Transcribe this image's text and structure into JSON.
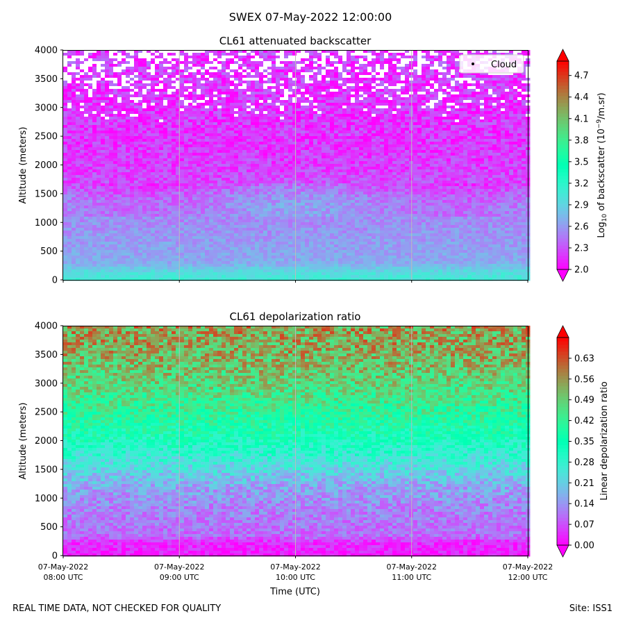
{
  "suptitle": "SWEX 07-May-2022 12:00:00",
  "footer": {
    "left": "REAL TIME DATA, NOT CHECKED FOR QUALITY",
    "right": "Site: ISS1"
  },
  "chart_data": [
    {
      "type": "heatmap",
      "title": "CL61 attenuated backscatter",
      "ylabel": "Altitude (meters)",
      "ylim": [
        0,
        4000
      ],
      "yticks": [
        0,
        500,
        1000,
        1500,
        2000,
        2500,
        3000,
        3500,
        4000
      ],
      "xlim": [
        "2022-05-07 08:00",
        "2022-05-07 12:00"
      ],
      "xticks": [
        "2022-05-07 08:00",
        "2022-05-07 09:00",
        "2022-05-07 10:00",
        "2022-05-07 11:00",
        "2022-05-07 12:00"
      ],
      "grid": "vertical lines at hourly ticks",
      "legend": {
        "entries": [
          "Cloud"
        ],
        "placement": "top-right"
      },
      "colorbar": {
        "label": "Log10 of backscatter (10^-9/m.sr)",
        "label_parts": {
          "pre": "Log",
          "sub": "10",
          "mid": " of backscatter (10",
          "sup": "−9",
          "post": "/m.sr)"
        },
        "range": [
          2.0,
          4.9
        ],
        "ticks": [
          "2.0",
          "2.3",
          "2.6",
          "2.9",
          "3.2",
          "3.5",
          "3.8",
          "4.1",
          "4.4",
          "4.7"
        ],
        "extend": "both",
        "colormap": "rainbow"
      },
      "profile": [
        {
          "altitude": 0,
          "value": 3.1
        },
        {
          "altitude": 150,
          "value": 2.95
        },
        {
          "altitude": 300,
          "value": 2.68
        },
        {
          "altitude": 600,
          "value": 2.62
        },
        {
          "altitude": 1000,
          "value": 2.55
        },
        {
          "altitude": 1400,
          "value": 2.5
        },
        {
          "altitude": 1700,
          "value": 2.28
        },
        {
          "altitude": 2000,
          "value": 2.22
        },
        {
          "altitude": 2500,
          "value": 2.2
        },
        {
          "altitude": 3000,
          "value": 2.18
        },
        {
          "altitude": 3500,
          "value": 2.2
        },
        {
          "altitude": 4000,
          "value": 2.2
        }
      ]
    },
    {
      "type": "heatmap",
      "title": "CL61 depolarization ratio",
      "xlabel": "Time (UTC)",
      "ylabel": "Altitude (meters)",
      "ylim": [
        0,
        4000
      ],
      "yticks": [
        0,
        500,
        1000,
        1500,
        2000,
        2500,
        3000,
        3500,
        4000
      ],
      "xlim": [
        "2022-05-07 08:00",
        "2022-05-07 12:00"
      ],
      "xticks": [
        "2022-05-07 08:00",
        "2022-05-07 09:00",
        "2022-05-07 10:00",
        "2022-05-07 11:00",
        "2022-05-07 12:00"
      ],
      "xticklabels": [
        [
          "07-May-2022",
          "08:00 UTC"
        ],
        [
          "07-May-2022",
          "09:00 UTC"
        ],
        [
          "07-May-2022",
          "10:00 UTC"
        ],
        [
          "07-May-2022",
          "11:00 UTC"
        ],
        [
          "07-May-2022",
          "12:00 UTC"
        ]
      ],
      "grid": "vertical lines at hourly ticks",
      "colorbar": {
        "label": "Linear depolarization ratio",
        "range": [
          0.0,
          0.7
        ],
        "ticks": [
          "0.00",
          "0.07",
          "0.14",
          "0.21",
          "0.28",
          "0.35",
          "0.42",
          "0.49",
          "0.56",
          "0.63"
        ],
        "extend": "both",
        "colormap": "rainbow"
      },
      "profile": [
        {
          "altitude": 0,
          "value": 0.02
        },
        {
          "altitude": 250,
          "value": 0.04
        },
        {
          "altitude": 350,
          "value": 0.1
        },
        {
          "altitude": 800,
          "value": 0.12
        },
        {
          "altitude": 1200,
          "value": 0.16
        },
        {
          "altitude": 1600,
          "value": 0.24
        },
        {
          "altitude": 2000,
          "value": 0.33
        },
        {
          "altitude": 2500,
          "value": 0.41
        },
        {
          "altitude": 3000,
          "value": 0.48
        },
        {
          "altitude": 3500,
          "value": 0.53
        },
        {
          "altitude": 4000,
          "value": 0.55
        }
      ]
    }
  ]
}
